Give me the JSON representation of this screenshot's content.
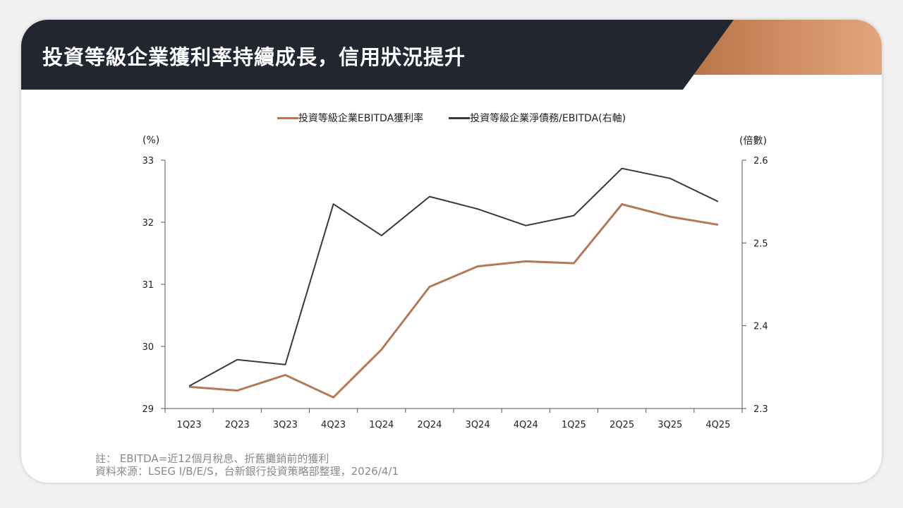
{
  "title": "投資等級企業獲利率持續成長，信用狀況提升",
  "colors": {
    "header_dark": "#222630",
    "accent_start": "#b87448",
    "accent_end": "#e3a57c",
    "series_margin": "#b5795a",
    "series_leverage": "#3a3a3a"
  },
  "legend": {
    "margin_label": "投資等級企業EBITDA獲利率",
    "leverage_label": "投資等級企業淨債務/EBITDA(右軸)"
  },
  "units": {
    "left": "(%)",
    "right": "(倍數)"
  },
  "chart_data": {
    "type": "line",
    "x": [
      "1Q23",
      "2Q23",
      "3Q23",
      "4Q23",
      "1Q24",
      "2Q24",
      "3Q24",
      "4Q24",
      "1Q25",
      "2Q25",
      "3Q25",
      "4Q25"
    ],
    "series": [
      {
        "name": "投資等級企業EBITDA獲利率",
        "axis": "left",
        "values": [
          29.35,
          29.29,
          29.54,
          29.18,
          29.95,
          30.96,
          31.29,
          31.37,
          31.34,
          32.29,
          32.09,
          31.96
        ]
      },
      {
        "name": "投資等級企業淨債務/EBITDA(右軸)",
        "axis": "right",
        "values": [
          2.327,
          2.359,
          2.353,
          2.547,
          2.509,
          2.556,
          2.541,
          2.521,
          2.533,
          2.59,
          2.578,
          2.55
        ]
      }
    ],
    "ylim_left": [
      29,
      33
    ],
    "yticks_left": [
      "29",
      "30",
      "31",
      "32",
      "33"
    ],
    "ylim_right": [
      2.3,
      2.6
    ],
    "yticks_right": [
      "2.3",
      "2.4",
      "2.5",
      "2.6"
    ],
    "grid": false,
    "legend_position": "top-center"
  },
  "notes": {
    "line1": "註： EBITDA=近12個月稅息、折舊攤銷前的獲利",
    "line2": "資料來源：LSEG I/B/E/S，台新銀行投資策略部整理，2026/4/1"
  }
}
